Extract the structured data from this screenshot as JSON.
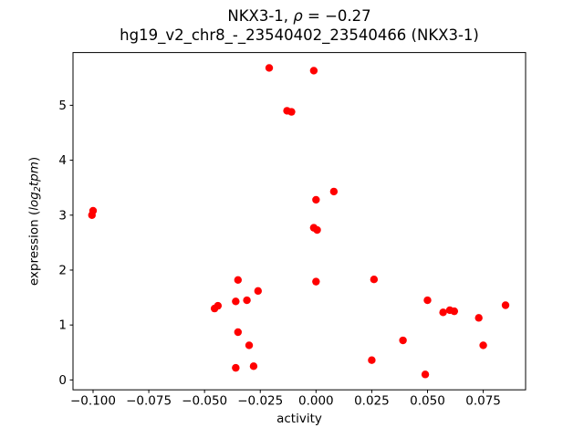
{
  "chart_data": {
    "type": "scatter",
    "title_line1": {
      "prefix": "NKX3-1, ",
      "rho": "ρ",
      "suffix": " = −0.27"
    },
    "title_line2": "hg19_v2_chr8_-_23540402_23540466 (NKX3-1)",
    "xlabel": "activity",
    "ylabel_parts": {
      "prefix": "expression (",
      "math_main": "log",
      "math_sub": "2",
      "math_tail": "tpm",
      "suffix": ")"
    },
    "marker_color": "#ff0000",
    "marker_radius": 4.2,
    "xlim": [
      -0.109,
      0.094
    ],
    "ylim": [
      -0.18,
      5.96
    ],
    "xticks": {
      "values": [
        -0.1,
        -0.075,
        -0.05,
        -0.025,
        0.0,
        0.025,
        0.05,
        0.075
      ],
      "labels": [
        "−0.100",
        "−0.075",
        "−0.050",
        "−0.025",
        "0.000",
        "0.025",
        "0.050",
        "0.075"
      ]
    },
    "yticks": {
      "values": [
        0,
        1,
        2,
        3,
        4,
        5
      ],
      "labels": [
        "0",
        "1",
        "2",
        "3",
        "4",
        "5"
      ]
    },
    "points": [
      [
        -0.1,
        3.08
      ],
      [
        -0.1005,
        3.0
      ],
      [
        -0.021,
        5.68
      ],
      [
        -0.001,
        5.63
      ],
      [
        -0.013,
        4.9
      ],
      [
        -0.011,
        4.88
      ],
      [
        0.0,
        3.28
      ],
      [
        0.008,
        3.43
      ],
      [
        -0.001,
        2.77
      ],
      [
        0.0005,
        2.73
      ],
      [
        0.0,
        1.79
      ],
      [
        -0.035,
        1.82
      ],
      [
        -0.026,
        1.62
      ],
      [
        -0.031,
        1.45
      ],
      [
        -0.036,
        1.43
      ],
      [
        -0.044,
        1.35
      ],
      [
        -0.0455,
        1.3
      ],
      [
        -0.035,
        0.87
      ],
      [
        -0.03,
        0.63
      ],
      [
        -0.036,
        0.22
      ],
      [
        -0.028,
        0.25
      ],
      [
        0.026,
        1.83
      ],
      [
        0.025,
        0.36
      ],
      [
        0.039,
        0.72
      ],
      [
        0.049,
        0.1
      ],
      [
        0.05,
        1.45
      ],
      [
        0.057,
        1.23
      ],
      [
        0.06,
        1.27
      ],
      [
        0.062,
        1.25
      ],
      [
        0.073,
        1.13
      ],
      [
        0.075,
        0.63
      ],
      [
        0.085,
        1.36
      ]
    ],
    "axis_color": "#000000",
    "background_color": "#ffffff"
  }
}
